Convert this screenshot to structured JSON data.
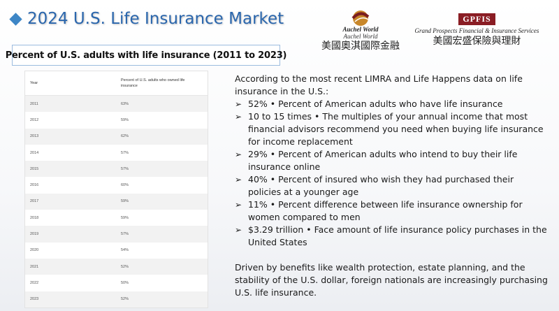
{
  "title": "2024 U.S. Life Insurance Market",
  "subtitle": "Percent of U.S. adults with life insurance (2011 to 2023)",
  "logos": {
    "auchel": {
      "name_bold": "Auchel World",
      "name_italic": "Auchel World",
      "chinese": "美國奧淇國際金融"
    },
    "gpfis": {
      "abbr": "GPFIS",
      "english": "Grand Prospects Financial & Insurance Services",
      "chinese": "美國宏盛保險與理財"
    }
  },
  "table": {
    "headers": [
      "Year",
      "Percent of U.S. adults who owned life insurance"
    ],
    "rows": [
      {
        "year": "2011",
        "pct": "63%"
      },
      {
        "year": "2012",
        "pct": "59%"
      },
      {
        "year": "2013",
        "pct": "62%"
      },
      {
        "year": "2014",
        "pct": "57%"
      },
      {
        "year": "2015",
        "pct": "57%"
      },
      {
        "year": "2016",
        "pct": "60%"
      },
      {
        "year": "2017",
        "pct": "59%"
      },
      {
        "year": "2018",
        "pct": "59%"
      },
      {
        "year": "2019",
        "pct": "57%"
      },
      {
        "year": "2020",
        "pct": "54%"
      },
      {
        "year": "2021",
        "pct": "52%"
      },
      {
        "year": "2022",
        "pct": "50%"
      },
      {
        "year": "2023",
        "pct": "52%"
      }
    ]
  },
  "intro": "According to the most recent LIMRA and Life Happens data on life insurance in the U.S.:",
  "bullets": [
    "52% • Percent of American adults who have life insurance",
    "10 to 15 times • The multiples of your annual income that most financial advisors recommend you need when buying life insurance for income replacement",
    "29% • Percent of American adults who intend to buy their life insurance online",
    "40% • Percent of insured who wish they had purchased their policies at a younger age",
    "11% • Percent difference between life insurance ownership for women compared to men",
    "$3.29 trillion • Face amount of life insurance policy purchases in the United States"
  ],
  "closing": "Driven by benefits like wealth protection, estate planning, and the stability of the U.S. dollar, foreign nationals are increasingly purchasing U.S. life insurance.",
  "colors": {
    "accent": "#2a66ad",
    "gpfis_red": "#8a1d24"
  }
}
